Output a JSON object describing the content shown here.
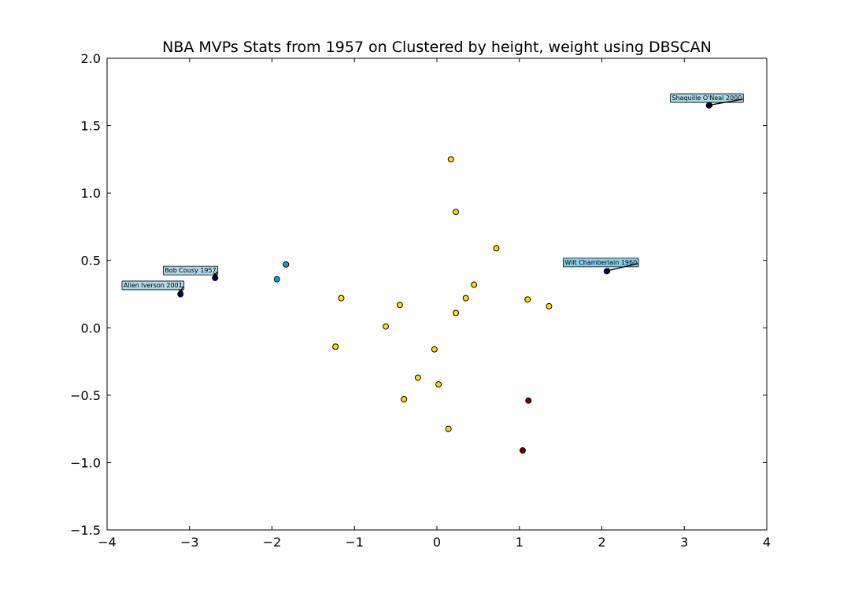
{
  "chart_data": {
    "type": "scatter",
    "title": "NBA MVPs Stats from 1957 on Clustered by height, weight using DBSCAN",
    "xlabel": "",
    "ylabel": "",
    "xlim": [
      -4,
      4
    ],
    "ylim": [
      -1.5,
      2.0
    ],
    "xticks": [
      -4,
      -3,
      -2,
      -1,
      0,
      1,
      2,
      3,
      4
    ],
    "xtick_labels": [
      "−4",
      "−3",
      "−2",
      "−1",
      "0",
      "1",
      "2",
      "3",
      "4"
    ],
    "yticks": [
      -1.5,
      -1.0,
      -0.5,
      0.0,
      0.5,
      1.0,
      1.5,
      2.0
    ],
    "ytick_labels": [
      "−1.5",
      "−1.0",
      "−0.5",
      "0.0",
      "0.5",
      "1.0",
      "1.5",
      "2.0"
    ],
    "grid": false,
    "points": [
      {
        "x": -3.11,
        "y": 0.25,
        "cluster": "noise"
      },
      {
        "x": -2.69,
        "y": 0.37,
        "cluster": "noise"
      },
      {
        "x": 2.06,
        "y": 0.42,
        "cluster": "noise"
      },
      {
        "x": 3.3,
        "y": 1.65,
        "cluster": "noise"
      },
      {
        "x": -1.83,
        "y": 0.47,
        "cluster": "c1"
      },
      {
        "x": -1.94,
        "y": 0.36,
        "cluster": "c1"
      },
      {
        "x": 0.17,
        "y": 1.25,
        "cluster": "c2"
      },
      {
        "x": 0.23,
        "y": 0.86,
        "cluster": "c2"
      },
      {
        "x": 0.72,
        "y": 0.59,
        "cluster": "c2"
      },
      {
        "x": 0.45,
        "y": 0.32,
        "cluster": "c2"
      },
      {
        "x": 0.35,
        "y": 0.22,
        "cluster": "c2"
      },
      {
        "x": 0.23,
        "y": 0.11,
        "cluster": "c2"
      },
      {
        "x": 1.1,
        "y": 0.21,
        "cluster": "c2"
      },
      {
        "x": 1.36,
        "y": 0.16,
        "cluster": "c2"
      },
      {
        "x": -1.16,
        "y": 0.22,
        "cluster": "c2"
      },
      {
        "x": -0.45,
        "y": 0.17,
        "cluster": "c2"
      },
      {
        "x": -0.62,
        "y": 0.01,
        "cluster": "c2"
      },
      {
        "x": -1.23,
        "y": -0.14,
        "cluster": "c2"
      },
      {
        "x": -0.03,
        "y": -0.16,
        "cluster": "c2"
      },
      {
        "x": -0.23,
        "y": -0.37,
        "cluster": "c2"
      },
      {
        "x": 0.02,
        "y": -0.42,
        "cluster": "c2"
      },
      {
        "x": -0.4,
        "y": -0.53,
        "cluster": "c2"
      },
      {
        "x": 0.14,
        "y": -0.75,
        "cluster": "c2"
      },
      {
        "x": 1.11,
        "y": -0.54,
        "cluster": "c3"
      },
      {
        "x": 1.04,
        "y": -0.91,
        "cluster": "c3"
      }
    ],
    "cluster_colors": {
      "noise": "#000066",
      "c1": "#00a8e0",
      "c2": "#ffdd00",
      "c3": "#800000"
    },
    "annotations": [
      {
        "text": "Allen Iverson 2001",
        "x": -3.11,
        "y": 0.25,
        "label_x": -3.8,
        "label_y": 0.3,
        "highlight": false
      },
      {
        "text": "Bob Cousy 1957",
        "x": -2.69,
        "y": 0.37,
        "label_x": -3.3,
        "label_y": 0.41,
        "highlight": false
      },
      {
        "text": "Wilt Chamberlain 1960",
        "x": 2.06,
        "y": 0.42,
        "label_x": 1.55,
        "label_y": 0.47,
        "highlight": true
      },
      {
        "text": "Shaquille O'Neal 2000",
        "x": 3.3,
        "y": 1.65,
        "label_x": 2.85,
        "label_y": 1.69,
        "highlight": false
      }
    ],
    "annotation_colors": {
      "box": "#add8e6",
      "box_highlight": "#87ceeb",
      "edge": "#000000"
    }
  }
}
